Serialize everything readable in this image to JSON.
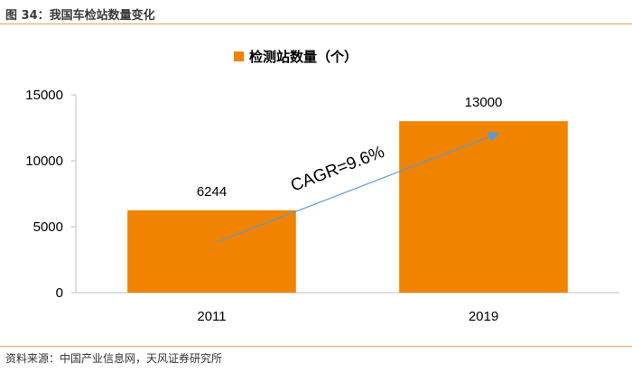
{
  "figure_title": "图 34：我国车检站数量变化",
  "source": "资料来源：中国产业信息网，天风证券研究所",
  "colors": {
    "bar": "#F08300",
    "arrow": "#5B9BD5",
    "rule": "#E3A860"
  },
  "chart_data": {
    "type": "bar",
    "title": "",
    "xlabel": "",
    "ylabel": "",
    "categories": [
      "2011",
      "2019"
    ],
    "series": [
      {
        "name": "检测站数量（个）",
        "values": [
          6244,
          13000
        ]
      }
    ],
    "data_labels": [
      "6244",
      "13000"
    ],
    "ylim": [
      0,
      15000
    ],
    "yticks": [
      "0",
      "5000",
      "10000",
      "15000"
    ],
    "legend": "top-center",
    "grid": false,
    "annotation": {
      "text": "CAGR=9.6%",
      "style": "arrow from 2011 bar to 2019 bar"
    }
  }
}
